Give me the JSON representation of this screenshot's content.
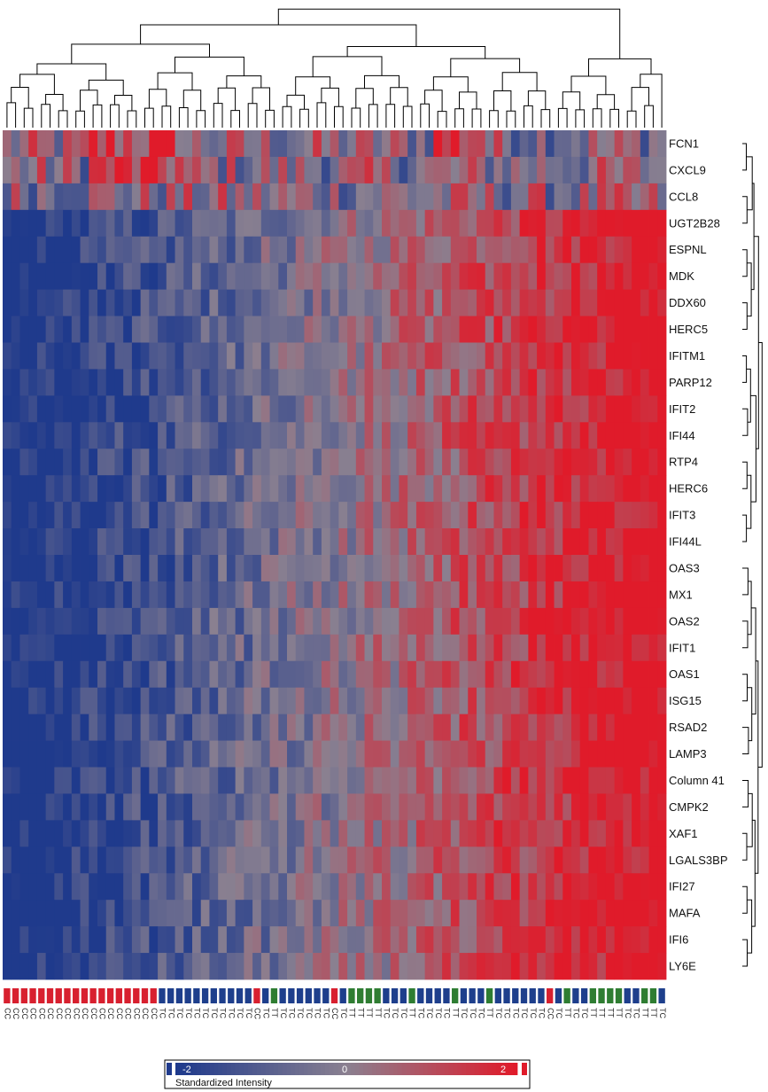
{
  "chart_data": {
    "type": "heatmap",
    "title": "",
    "xlabel": "",
    "ylabel": "",
    "rows": [
      "FCN1",
      "CXCL9",
      "CCL8",
      "UGT2B28",
      "ESPNL",
      "MDK",
      "DDX60",
      "HERC5",
      "IFITM1",
      "PARP12",
      "IFIT2",
      "IFI44",
      "RTP4",
      "HERC6",
      "IFIT3",
      "IFI44L",
      "OAS3",
      "MX1",
      "OAS2",
      "IFIT1",
      "OAS1",
      "ISG15",
      "RSAD2",
      "LAMP3",
      "Column 41",
      "CMPK2",
      "XAF1",
      "LGALS3BP",
      "IFI27",
      "MAFA",
      "IFI6",
      "LY6E"
    ],
    "columns": [
      "CC",
      "CC",
      "CC",
      "CC",
      "CC",
      "CC",
      "CC",
      "CC",
      "CC",
      "CC",
      "CC",
      "CC",
      "CC",
      "CC",
      "CC",
      "CC",
      "CC",
      "CC",
      "TC",
      "TC",
      "TC",
      "TC",
      "TC",
      "TC",
      "TC",
      "TC",
      "TC",
      "TC",
      "TC",
      "CC",
      "TC",
      "TT",
      "TC",
      "TC",
      "TC",
      "TC",
      "TC",
      "TC",
      "CC",
      "TC",
      "TT",
      "TT",
      "TT",
      "TT",
      "TC",
      "TC",
      "TC",
      "TT",
      "TC",
      "TC",
      "TC",
      "TC",
      "TT",
      "TC",
      "TC",
      "TC",
      "TT",
      "TC",
      "TC",
      "TC",
      "TC",
      "TC",
      "TC",
      "CC",
      "TC",
      "TT",
      "TC",
      "TC",
      "TT",
      "TT",
      "TT",
      "TT",
      "TC",
      "TC",
      "TT",
      "TT",
      "TC"
    ],
    "column_groups": {
      "CC": "#d8202f",
      "TC": "#1e3f8c",
      "TT": "#2f7d32"
    },
    "color_scale": {
      "min": -2,
      "mid": 0,
      "max": 2,
      "low_color": "#1f3a8c",
      "mid_color": "#8a8090",
      "high_color": "#e01b2a",
      "label": "Standardized Intensity",
      "tick_labels": [
        "-2",
        "0",
        "2"
      ]
    },
    "blocks": {
      "group_a_genes": [
        "FCN1",
        "CXCL9",
        "CCL8"
      ],
      "group_b_genes": [
        "UGT2B28",
        "ESPNL",
        "MDK",
        "DDX60",
        "HERC5",
        "IFITM1",
        "PARP12",
        "IFIT2",
        "IFI44",
        "RTP4",
        "HERC6",
        "IFIT3",
        "IFI44L",
        "OAS3",
        "MX1",
        "OAS2",
        "IFIT1",
        "OAS1",
        "ISG15",
        "RSAD2",
        "LAMP3",
        "Column 41",
        "CMPK2",
        "XAF1",
        "LGALS3BP",
        "IFI27",
        "MAFA",
        "IFI6",
        "LY6E"
      ]
    },
    "dendrogram_top": true,
    "dendrogram_right": true,
    "legend_position": "bottom-center",
    "grid": false
  }
}
